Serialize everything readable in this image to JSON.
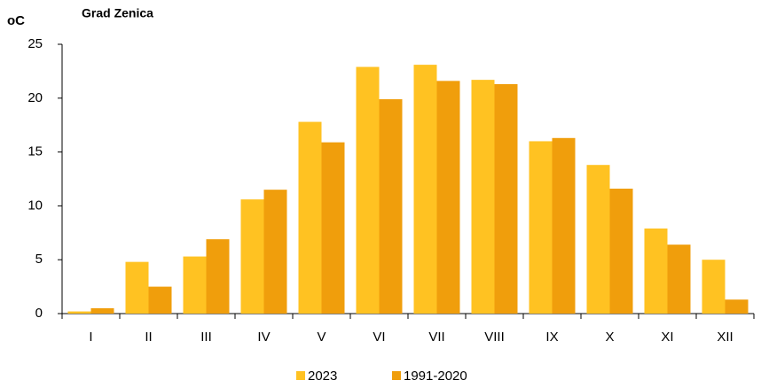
{
  "chart_data": {
    "type": "bar",
    "title": "Grad Zenica",
    "y_label": "oC",
    "categories": [
      "I",
      "II",
      "III",
      "IV",
      "V",
      "VI",
      "VII",
      "VIII",
      "IX",
      "X",
      "XI",
      "XII"
    ],
    "series": [
      {
        "name": "2023",
        "color": "#ffc222",
        "values": [
          0.2,
          4.8,
          5.3,
          10.6,
          17.8,
          22.9,
          23.1,
          21.7,
          16.0,
          13.8,
          7.9,
          5.0
        ]
      },
      {
        "name": "1991-2020",
        "color": "#f09e0c",
        "values": [
          0.5,
          2.5,
          6.9,
          11.5,
          15.9,
          19.9,
          21.6,
          21.3,
          16.3,
          11.6,
          6.4,
          1.3
        ]
      }
    ],
    "ylim": [
      0,
      25
    ],
    "yticks": [
      0,
      5,
      10,
      15,
      20,
      25
    ],
    "grid": false,
    "legend": "bottom"
  }
}
